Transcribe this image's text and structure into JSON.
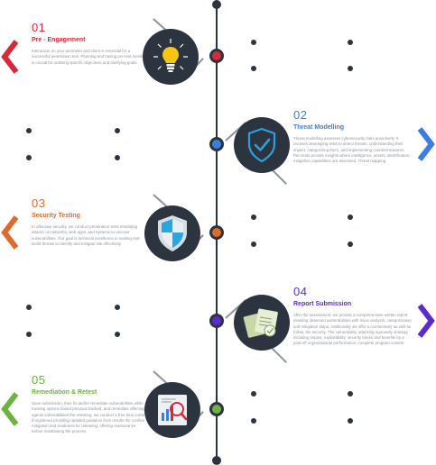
{
  "steps": [
    {
      "number": "01",
      "title": "Pre - Engagement",
      "description": "Interaction on your perimeter and client is essential for a successful penetration test. Planning and having pre-test meeting is crucial for outlining specific objectives and clarifying goals.",
      "color": "#d42a3a",
      "icon": "lightbulb-icon",
      "side": "left"
    },
    {
      "number": "02",
      "title": "Threat Modelling",
      "description": "Threat modelling assesses cybersecurity risks proactively. It involves developing tests to detect threats, understanding their impact, categorizing them, and implementing countermeasures. Pen tests provide insights where intelligence, assets, identification, mitigation capabilities are assessed. Threat mapping.",
      "color": "#3b7de0",
      "icon": "shield-check-icon",
      "side": "right"
    },
    {
      "number": "03",
      "title": "Security Testing",
      "description": "In offensive security, we conduct penetration tests emulating attacks on networks, web apps, and systems to uncover vulnerabilities. Our goal is technical excellence in making real-world threats to identify and mitigate risk effectively.",
      "color": "#e06a2c",
      "icon": "security-shield-icon",
      "side": "left"
    },
    {
      "number": "04",
      "title": "Report Submission",
      "description": "After the assessment, we provide a comprehensive written report detailing observed vulnerabilities with issue analysis, categorization and mitigation steps. Additionally we offer a commentary as well as follow, the security. The vulnerability, attacking rigorously strategy including impact, exploitability, security tracks and benefits by a post-off organizational performance, complete program content.",
      "color": "#5c2bd0",
      "icon": "report-documents-icon",
      "side": "right"
    },
    {
      "number": "05",
      "title": "Remediation & Retest",
      "description": "Upon submission, their fix and/or remediate vulnerabilities while tracking options based previous tracked, and remediate affecting agents vulnerabilities the retesting, we conduct a free time current if registered providing updated guidance from results the confirm mitigation and readiness for releasing, offering reassurance before maintaining the process.",
      "color": "#6cb33f",
      "icon": "analytics-chart-icon",
      "side": "left"
    }
  ],
  "colors": {
    "line": "#2c3440",
    "icon_bg": "#2c3440",
    "connector": "#8c939b",
    "muted_text": "#8e949a"
  }
}
